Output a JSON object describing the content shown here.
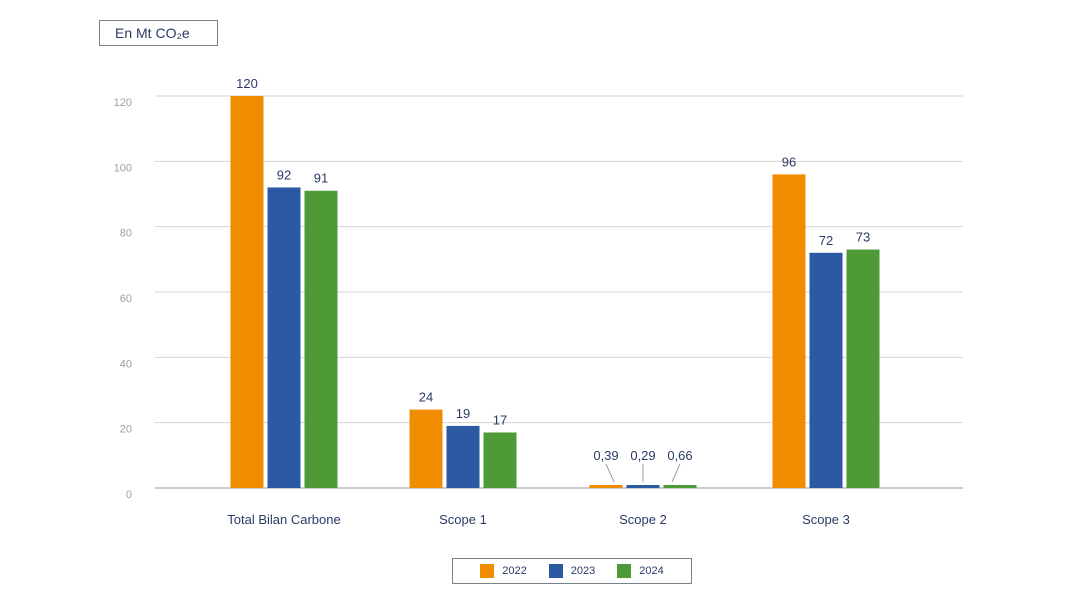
{
  "unit_label": "En Mt CO₂e",
  "colors": {
    "2022": "#F08C00",
    "2023": "#2B5AA3",
    "2024": "#4E9A36"
  },
  "chart_data": {
    "type": "bar",
    "categories": [
      "Total Bilan Carbone",
      "Scope 1",
      "Scope 2",
      "Scope 3"
    ],
    "series": [
      {
        "name": "2022",
        "values": [
          120,
          24,
          0.39,
          96
        ],
        "labels": [
          "120",
          "24",
          "0,39",
          "96"
        ]
      },
      {
        "name": "2023",
        "values": [
          92,
          19,
          0.29,
          72
        ],
        "labels": [
          "92",
          "19",
          "0,29",
          "72"
        ]
      },
      {
        "name": "2024",
        "values": [
          91,
          17,
          0.66,
          73
        ],
        "labels": [
          "91",
          "17",
          "0,66",
          "73"
        ]
      }
    ],
    "yticks": [
      "0",
      "20",
      "40",
      "60",
      "80",
      "100",
      "120"
    ],
    "ylim": [
      0,
      120
    ],
    "grid": true,
    "legend_position": "bottom"
  }
}
